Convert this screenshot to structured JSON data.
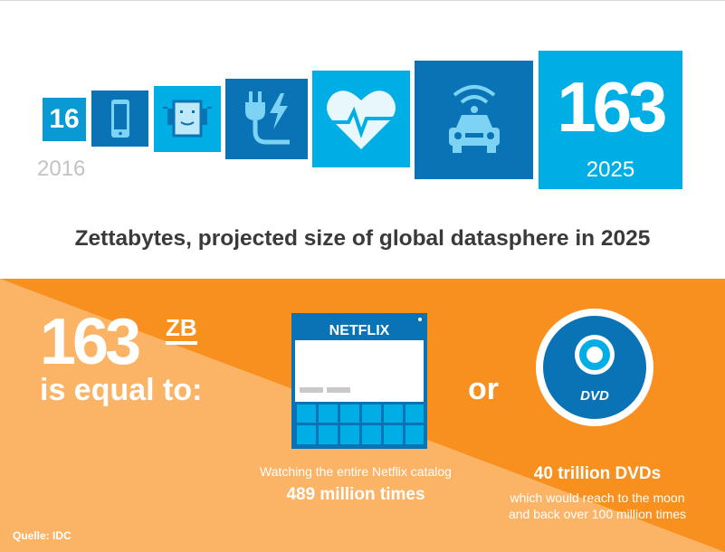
{
  "top": {
    "start_value": "16",
    "start_year": "2016",
    "end_value": "163",
    "end_year": "2025",
    "headline": "Zettabytes, projected size of global datasphere in 2025",
    "icons": [
      "smartphone-icon",
      "robot-icon",
      "power-plug-icon",
      "heartbeat-icon",
      "connected-car-icon"
    ]
  },
  "bottom": {
    "zb_number": "163",
    "zb_unit": "ZB",
    "equal_to": "is equal to:",
    "or_word": "or",
    "netflix": {
      "logo": "NETFLIX",
      "caption_line1": "Watching the entire Netflix catalog",
      "caption_line2": "489 million times"
    },
    "dvd": {
      "label": "DVD",
      "caption_line1": "40 trillion DVDs",
      "caption_line2": "which would reach to the moon",
      "caption_line3": "and back over 100 million times"
    },
    "source": "Quelle: IDC"
  },
  "colors": {
    "blue_light": "#00aee6",
    "blue_dark": "#0a73b5",
    "orange_dark": "#f7901e",
    "orange_light": "#fbb466",
    "headline_gray": "#3a3a3a",
    "year_gray": "#c3c3c3"
  }
}
